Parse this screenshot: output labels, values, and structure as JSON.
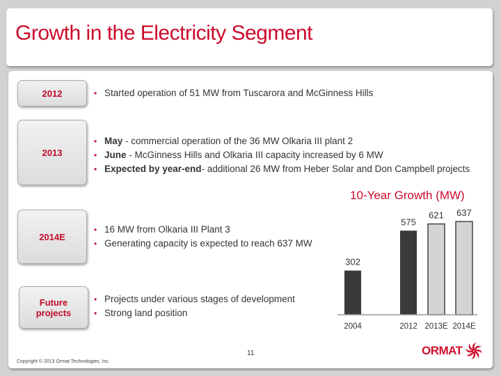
{
  "title": "Growth in the Electricity Segment",
  "rows": [
    {
      "label": "2012",
      "bullets": [
        {
          "bold": "",
          "text": "Started operation of 51 MW from Tuscarora and McGinness Hills"
        }
      ]
    },
    {
      "label": "2013",
      "bullets": [
        {
          "bold": "May",
          "text": " - commercial operation of  the 36 MW Olkaria III plant 2"
        },
        {
          "bold": "June",
          "text": " - McGinness Hills and Olkaria III capacity increased by 6 MW"
        },
        {
          "bold": "Expected by year-end",
          "text": "- additional 26 MW from Heber Solar and Don Campbell projects"
        }
      ]
    },
    {
      "label": "2014E",
      "bullets": [
        {
          "bold": "",
          "text": "16 MW from Olkaria III Plant 3"
        },
        {
          "bold": "",
          "text": "Generating capacity is expected to reach 637 MW"
        }
      ]
    },
    {
      "label": "Future projects",
      "bullets": [
        {
          "bold": "",
          "text": "Projects under various stages of development"
        },
        {
          "bold": "",
          "text": "Strong land position"
        }
      ]
    }
  ],
  "chart_data": {
    "type": "bar",
    "title": "10-Year Growth (MW)",
    "categories": [
      "2004",
      "2012",
      "2013E",
      "2014E"
    ],
    "values": [
      302,
      575,
      621,
      637
    ],
    "data_labels": [
      "302",
      "575",
      "621",
      "637"
    ],
    "bar_colors": [
      "#3a3a3a",
      "#3a3a3a",
      "#d4d4d4",
      "#d4d4d4"
    ],
    "ylim": [
      0,
      650
    ],
    "grid": false
  },
  "page_number": "11",
  "copyright": "Copyright © 2013 Ormat Technologies, Inc.",
  "logo": {
    "text": "ORMAT",
    "mark": "®"
  },
  "colors": {
    "accent": "#cc0a2a",
    "background": "#d2d2d2"
  }
}
